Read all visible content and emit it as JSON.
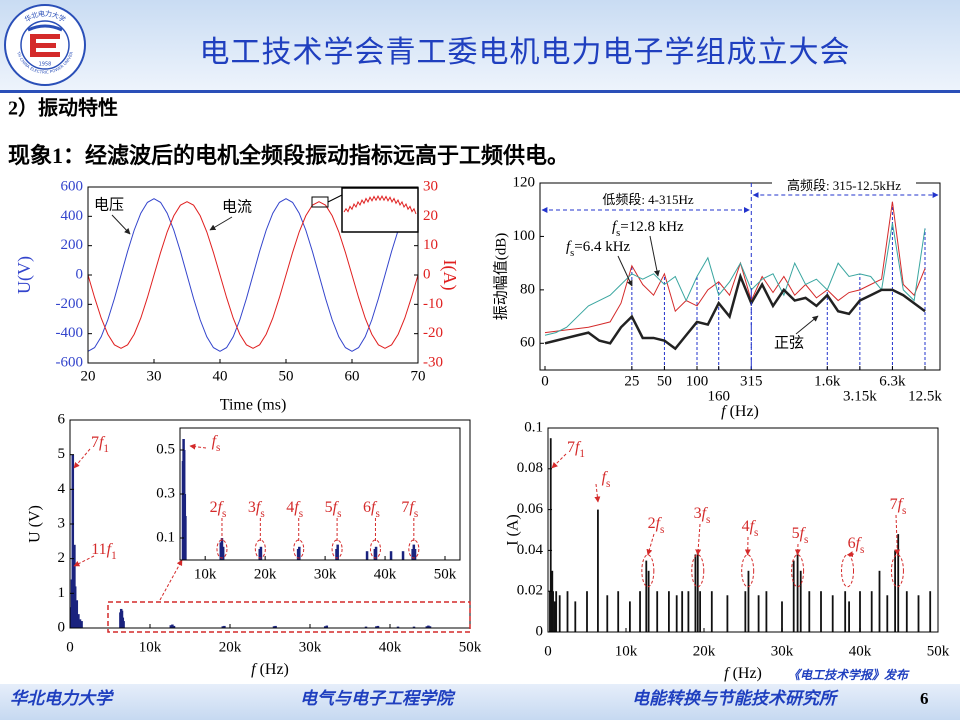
{
  "logo": {
    "name": "NORTH CHINA ELECTRIC POWER UNIVERSITY",
    "year": "1958"
  },
  "header": {
    "title": "电工技术学会青工委电机电力电子学组成立大会"
  },
  "section": "2）振动特性",
  "statement": "现象1：经滤波后的电机全频段振动指标远高于工频供电。",
  "footer": {
    "university": "华北电力大学",
    "school": "电气与电子工程学院",
    "institute": "电能转换与节能技术研究所",
    "source": "《电工技术学报》发布",
    "page": "6"
  },
  "chart_data": [
    {
      "type": "line",
      "x": [
        20,
        21,
        22,
        23,
        24,
        25,
        26,
        27,
        28,
        29,
        30,
        31,
        32,
        33,
        34,
        35,
        36,
        37,
        38,
        39,
        40,
        41,
        42,
        43,
        44,
        45,
        46,
        47,
        48,
        49,
        50,
        51,
        52,
        53,
        54,
        55,
        56,
        57,
        58,
        59,
        60,
        61,
        62,
        63,
        64,
        65,
        66,
        67,
        68,
        69,
        70
      ],
      "series": [
        {
          "name": "电压",
          "color": "#3344cc",
          "values": [
            -520,
            -495,
            -421,
            -306,
            -161,
            0,
            161,
            306,
            421,
            495,
            520,
            495,
            421,
            306,
            161,
            0,
            -161,
            -306,
            -421,
            -495,
            -520,
            -495,
            -421,
            -306,
            -161,
            0,
            161,
            306,
            421,
            495,
            520,
            495,
            421,
            306,
            161,
            0,
            -161,
            -306,
            -421,
            -495,
            -520,
            -495,
            -421,
            -306,
            -161,
            0,
            161,
            306,
            421,
            495,
            520
          ]
        },
        {
          "name": "电流",
          "color": "#e02020",
          "axis": "y2",
          "values": [
            0,
            -7.7,
            -14.7,
            -20.2,
            -23.8,
            -25,
            -23.8,
            -20.2,
            -14.7,
            -7.7,
            0,
            7.7,
            14.7,
            20.2,
            23.8,
            25,
            23.8,
            20.2,
            14.7,
            7.7,
            0,
            -7.7,
            -14.7,
            -20.2,
            -23.8,
            -25,
            -23.8,
            -20.2,
            -14.7,
            -7.7,
            0,
            7.7,
            14.7,
            20.2,
            23.8,
            25,
            23.8,
            20.2,
            14.7,
            7.7,
            0,
            -7.7,
            -14.7,
            -20.2,
            -23.8,
            -25,
            -23.8,
            -20.2,
            -14.7,
            -7.7,
            0
          ]
        }
      ],
      "xlim": [
        20,
        70
      ],
      "xticks": [
        20,
        30,
        40,
        50,
        60,
        70
      ],
      "ylim": [
        -600,
        600
      ],
      "yticks": [
        600,
        400,
        200,
        0,
        -200,
        -400,
        -600
      ],
      "y2lim": [
        -30,
        30
      ],
      "y2ticks": [
        30,
        20,
        10,
        0,
        -10,
        -20,
        -30
      ],
      "xlabel": "Time (ms)",
      "ylabel": "U(V)",
      "y2label": "I(A)"
    },
    {
      "type": "line",
      "categories": [
        "0",
        null,
        null,
        null,
        null,
        null,
        null,
        null,
        "25",
        null,
        null,
        "50",
        null,
        null,
        "100",
        null,
        "160",
        null,
        null,
        "315",
        null,
        null,
        null,
        null,
        null,
        null,
        "1.6k",
        null,
        null,
        "3.15k",
        null,
        null,
        "6.3k",
        null,
        null,
        "12.5k"
      ],
      "series": [
        {
          "name": "fs=12.8 kHz",
          "color": "#d42a2a",
          "linewidth": 1,
          "values": [
            64,
            64.5,
            65,
            65.5,
            66,
            67,
            68,
            75,
            89,
            82,
            78,
            86,
            72,
            76,
            74,
            80,
            83,
            78,
            90,
            76,
            85,
            79,
            85,
            78,
            82,
            77,
            80,
            76,
            79,
            80,
            82,
            84,
            113,
            82,
            78,
            88
          ]
        },
        {
          "name": "fs=6.4 kHz",
          "color": "#3aa6a0",
          "linewidth": 1,
          "values": [
            63,
            64,
            66,
            70,
            74,
            76,
            78,
            82,
            86,
            84,
            86,
            82,
            85,
            76,
            85,
            92,
            78,
            83,
            90,
            80,
            84,
            86,
            78,
            90,
            82,
            84,
            80,
            90,
            85,
            86,
            85,
            80,
            105,
            80,
            76,
            103
          ]
        },
        {
          "name": "正弦",
          "color": "#222222",
          "linewidth": 2.5,
          "values": [
            60,
            61,
            62,
            63,
            64,
            61,
            60,
            66,
            70,
            62,
            62,
            61,
            58,
            63,
            68,
            67,
            75,
            70,
            85,
            75,
            82,
            74,
            80,
            76,
            77,
            74,
            78,
            72,
            71,
            76,
            78,
            80,
            80,
            78,
            75,
            72
          ]
        }
      ],
      "ylim": [
        50,
        120
      ],
      "yticks": [
        60,
        80,
        100,
        120
      ],
      "xlabel": "f (Hz)",
      "ylabel": "振动幅值(dB)",
      "annotations": [
        "低频段: 4-315Hz",
        "高频段: 315-12.5kHz"
      ]
    },
    {
      "type": "stem",
      "color": "#1a237e",
      "x": [
        150,
        250,
        350,
        450,
        550,
        650,
        750,
        850,
        950,
        1050,
        1250,
        1450,
        6300,
        6400,
        6500,
        6600,
        6700,
        12600,
        12800,
        13000,
        19100,
        19300,
        25500,
        25700,
        31900,
        32100,
        37000,
        38300,
        38500,
        41000,
        43000,
        44600,
        44800,
        45000
      ],
      "values": [
        0.6,
        1.4,
        5.0,
        0.9,
        2.4,
        1.2,
        0.7,
        0.8,
        0.3,
        0.4,
        0.25,
        0.2,
        0.45,
        0.55,
        0.5,
        0.3,
        0.2,
        0.08,
        0.1,
        0.06,
        0.05,
        0.06,
        0.05,
        0.06,
        0.05,
        0.07,
        0.04,
        0.05,
        0.06,
        0.04,
        0.04,
        0.05,
        0.07,
        0.05
      ],
      "xlim": [
        0,
        50000
      ],
      "xticks": [
        0,
        {
          "value": 10000,
          "label": "10k"
        },
        {
          "value": 20000,
          "label": "20k"
        },
        {
          "value": 30000,
          "label": "30k"
        },
        {
          "value": 40000,
          "label": "40k"
        },
        {
          "value": 50000,
          "label": "50k"
        }
      ],
      "ylim": [
        0,
        6
      ],
      "yticks": [
        0,
        1,
        2,
        3,
        4,
        5,
        6
      ],
      "xlabel": "f (Hz)",
      "ylabel": "U (V)",
      "annotations": [
        "7f1",
        "11f1"
      ],
      "inset": {
        "xlim": [
          5800,
          52500
        ],
        "ylim": [
          0,
          0.6
        ],
        "xticks": [
          {
            "value": 10000,
            "label": "10k"
          },
          {
            "value": 20000,
            "label": "20k"
          },
          {
            "value": 30000,
            "label": "30k"
          },
          {
            "value": 40000,
            "label": "40k"
          },
          {
            "value": 50000,
            "label": "50k"
          }
        ],
        "yticks": [
          0.1,
          0.3,
          0.5
        ],
        "annotations": [
          "fs",
          "2fs",
          "3fs",
          "4fs",
          "5fs",
          "6fs",
          "7fs"
        ]
      }
    },
    {
      "type": "stem",
      "color": "#111111",
      "x": [
        250,
        350,
        550,
        650,
        850,
        1050,
        1500,
        2500,
        3500,
        5000,
        6400,
        7600,
        9000,
        10500,
        11800,
        12600,
        12900,
        14000,
        15500,
        16500,
        17200,
        18000,
        18900,
        19200,
        19500,
        21000,
        23000,
        25300,
        25700,
        27000,
        28000,
        30000,
        31500,
        32000,
        32400,
        33500,
        35000,
        36500,
        38100,
        38600,
        40000,
        41500,
        42500,
        43500,
        44500,
        44900,
        46000,
        47500,
        49000
      ],
      "values": [
        0.02,
        0.095,
        0.03,
        0.02,
        0.015,
        0.02,
        0.018,
        0.02,
        0.015,
        0.02,
        0.06,
        0.018,
        0.02,
        0.015,
        0.02,
        0.035,
        0.03,
        0.02,
        0.02,
        0.018,
        0.02,
        0.02,
        0.038,
        0.04,
        0.02,
        0.02,
        0.018,
        0.02,
        0.03,
        0.018,
        0.02,
        0.015,
        0.035,
        0.04,
        0.03,
        0.02,
        0.02,
        0.018,
        0.02,
        0.015,
        0.02,
        0.02,
        0.03,
        0.018,
        0.04,
        0.048,
        0.02,
        0.018,
        0.02
      ],
      "xlim": [
        0,
        50000
      ],
      "xticks": [
        0,
        {
          "value": 10000,
          "label": "10k"
        },
        {
          "value": 20000,
          "label": "20k"
        },
        {
          "value": 30000,
          "label": "30k"
        },
        {
          "value": 40000,
          "label": "40k"
        },
        {
          "value": 50000,
          "label": "50k"
        }
      ],
      "ylim": [
        0,
        0.1
      ],
      "yticks": [
        0,
        0.02,
        0.04,
        0.06,
        0.08,
        0.1
      ],
      "xlabel": "f (Hz)",
      "ylabel": "I (A)",
      "annotations": [
        "7f1",
        "fs",
        "2fs",
        "3fs",
        "4fs",
        "5fs",
        "6fs",
        "7fs"
      ]
    }
  ]
}
